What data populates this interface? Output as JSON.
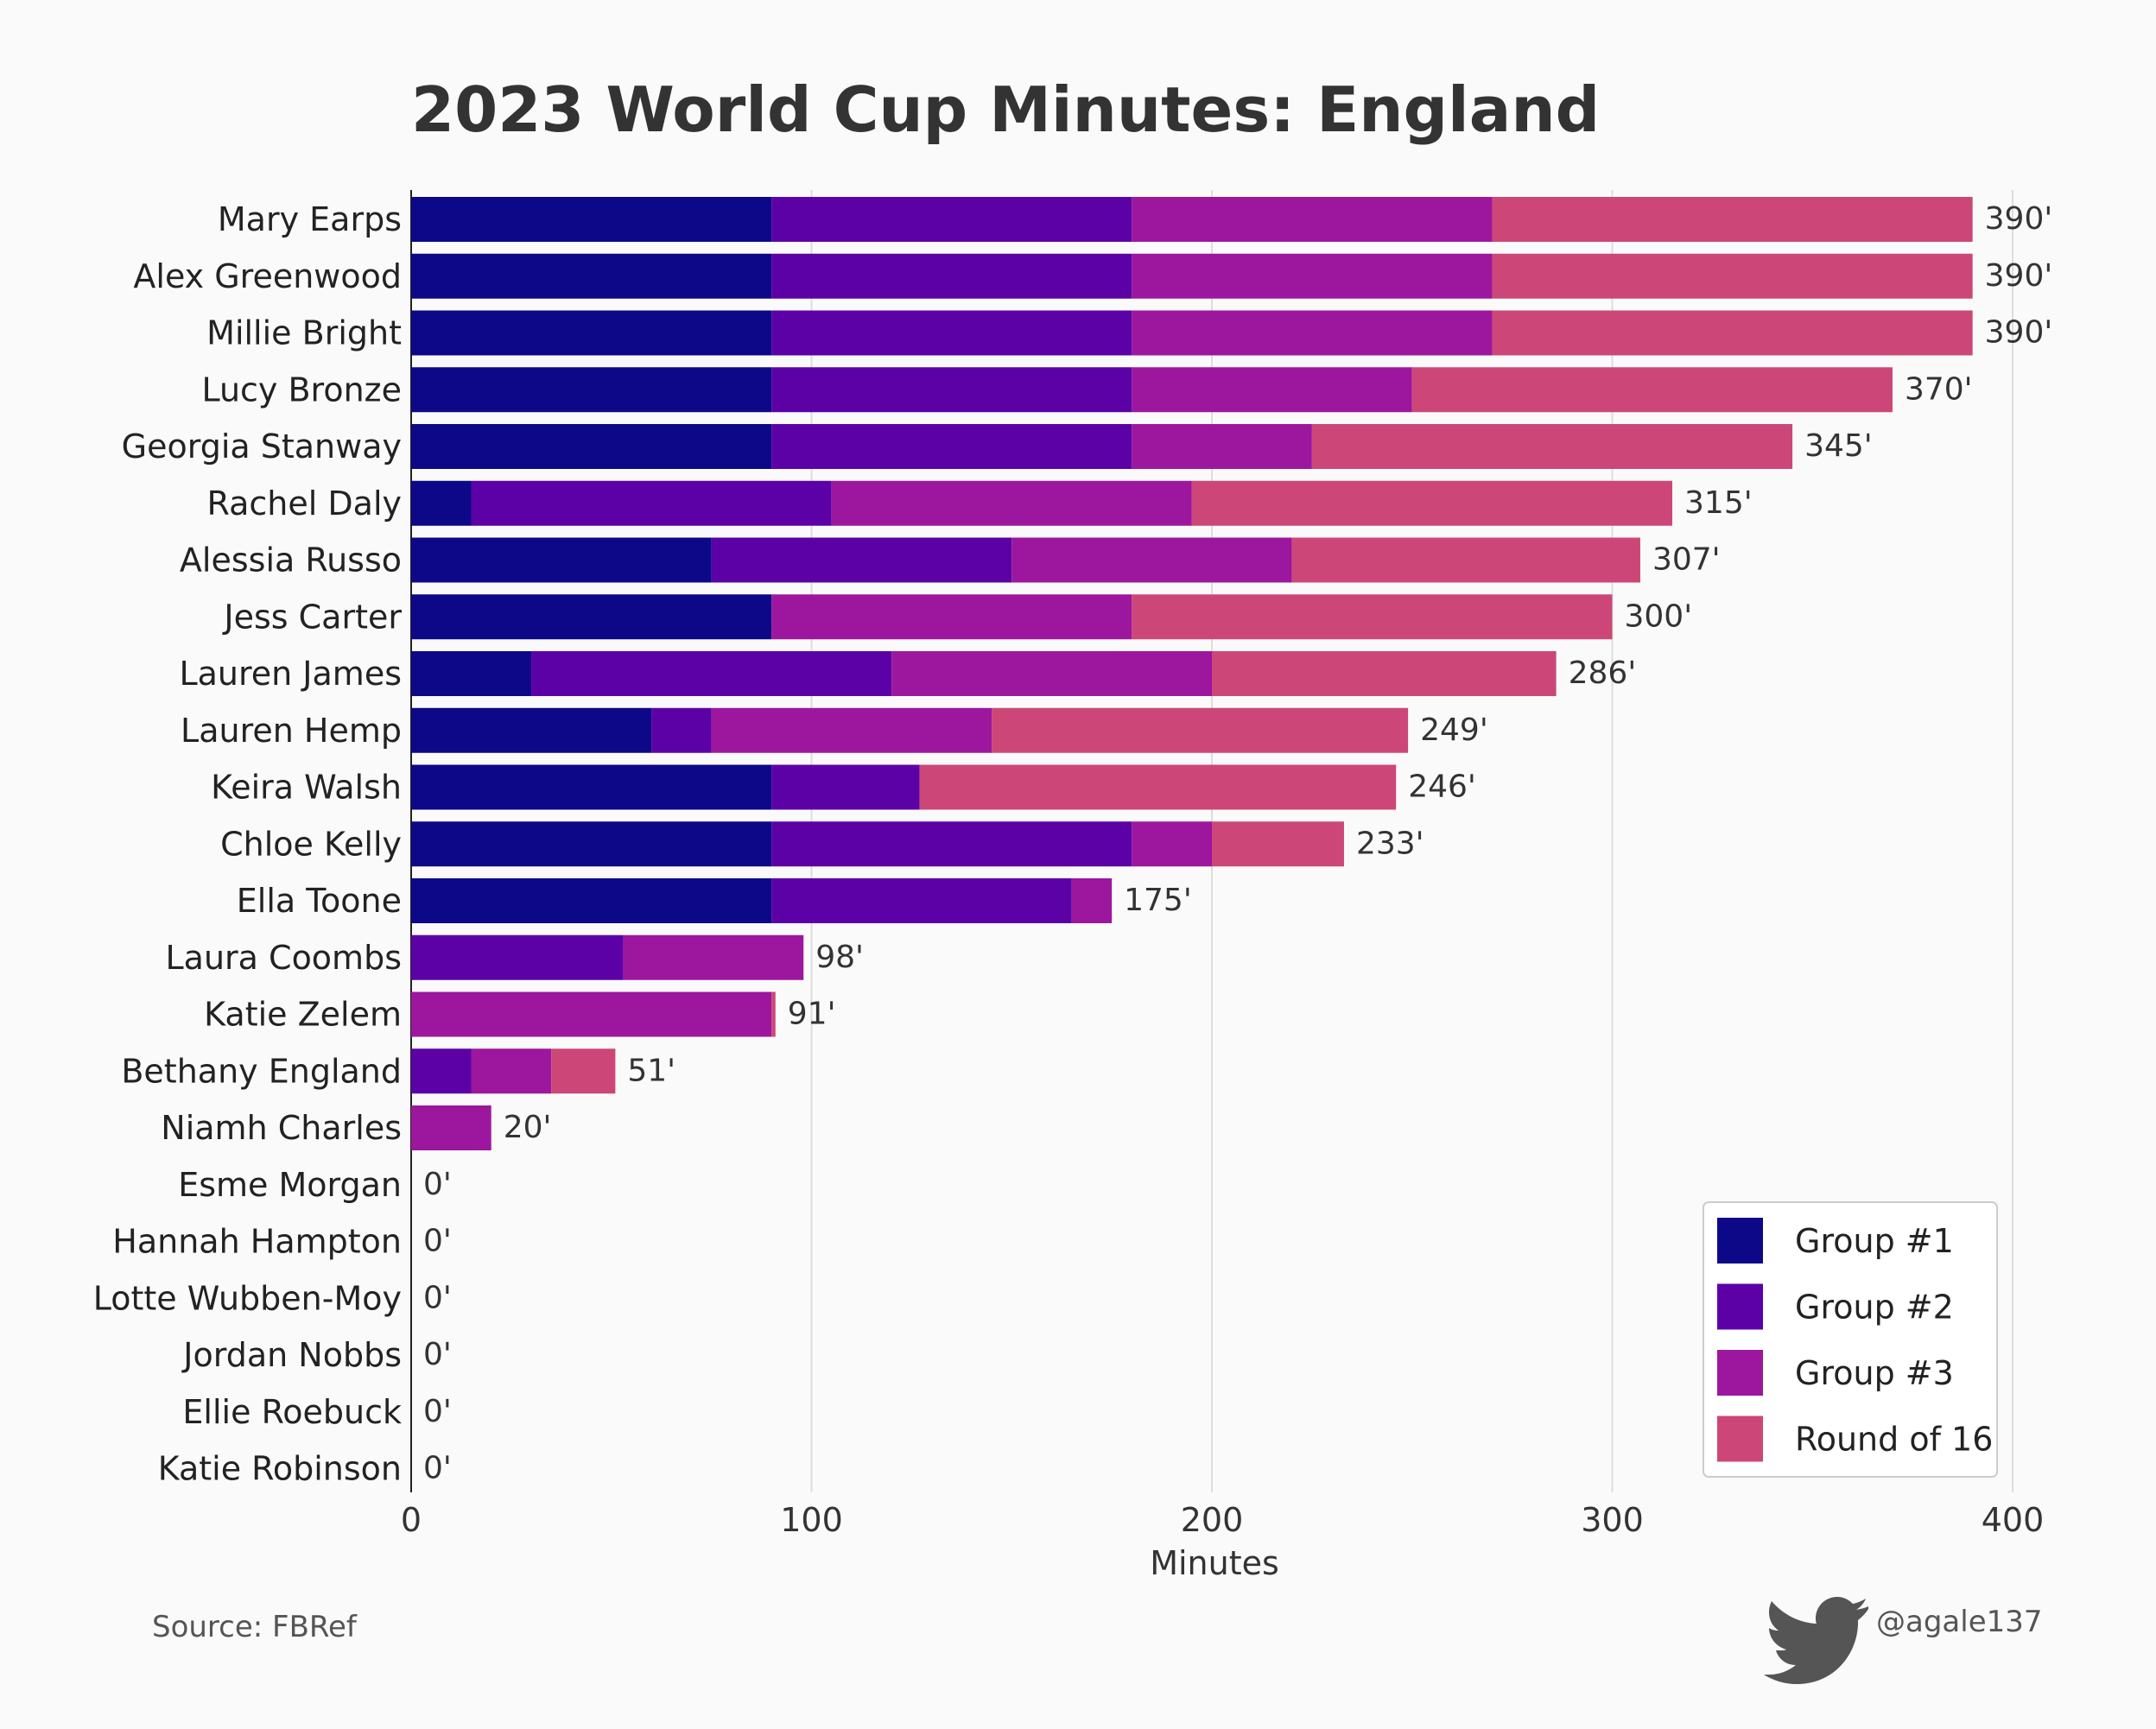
{
  "chart_data": {
    "type": "bar",
    "orientation": "horizontal",
    "stacked": true,
    "title": "2023 World Cup Minutes: England",
    "xlabel": "Minutes",
    "ylabel": "",
    "xlim": [
      0,
      400
    ],
    "xticks": [
      "0",
      "100",
      "200",
      "300",
      "400"
    ],
    "grid": true,
    "legend_position": "bottom-right",
    "categories": [
      "Mary Earps",
      "Alex Greenwood",
      "Millie Bright",
      "Lucy Bronze",
      "Georgia Stanway",
      "Rachel Daly",
      "Alessia Russo",
      "Jess Carter",
      "Lauren James",
      "Lauren Hemp",
      "Keira Walsh",
      "Chloe Kelly",
      "Ella Toone",
      "Laura Coombs",
      "Katie Zelem",
      "Bethany England",
      "Niamh Charles",
      "Esme Morgan",
      "Hannah Hampton",
      "Lotte Wubben-Moy",
      "Jordan Nobbs",
      "Ellie Roebuck",
      "Katie Robinson"
    ],
    "series": [
      {
        "name": "Group #1",
        "color": "#0d0887",
        "values": [
          90,
          90,
          90,
          90,
          90,
          15,
          75,
          90,
          30,
          60,
          90,
          90,
          90,
          0,
          0,
          0,
          0,
          0,
          0,
          0,
          0,
          0,
          0
        ]
      },
      {
        "name": "Group #2",
        "color": "#5c01a6",
        "values": [
          90,
          90,
          90,
          90,
          90,
          90,
          75,
          0,
          90,
          15,
          37,
          90,
          75,
          53,
          0,
          15,
          0,
          0,
          0,
          0,
          0,
          0,
          0
        ]
      },
      {
        "name": "Group #3",
        "color": "#9c179e",
        "values": [
          90,
          90,
          90,
          70,
          45,
          90,
          70,
          90,
          80,
          70,
          0,
          20,
          10,
          45,
          90,
          20,
          20,
          0,
          0,
          0,
          0,
          0,
          0
        ]
      },
      {
        "name": "Round of 16",
        "color": "#cc4778",
        "values": [
          120,
          120,
          120,
          120,
          120,
          120,
          87,
          120,
          86,
          104,
          119,
          33,
          0,
          0,
          1,
          16,
          0,
          0,
          0,
          0,
          0,
          0,
          0
        ]
      }
    ],
    "totals": [
      "390'",
      "390'",
      "390'",
      "370'",
      "345'",
      "315'",
      "307'",
      "300'",
      "286'",
      "249'",
      "246'",
      "233'",
      "175'",
      "98'",
      "91'",
      "51'",
      "20'",
      "0'",
      "0'",
      "0'",
      "0'",
      "0'",
      "0'"
    ]
  },
  "footer": {
    "source": "Source: FBRef",
    "credit": "@agale137",
    "credit_icon": "twitter-bird-icon"
  }
}
